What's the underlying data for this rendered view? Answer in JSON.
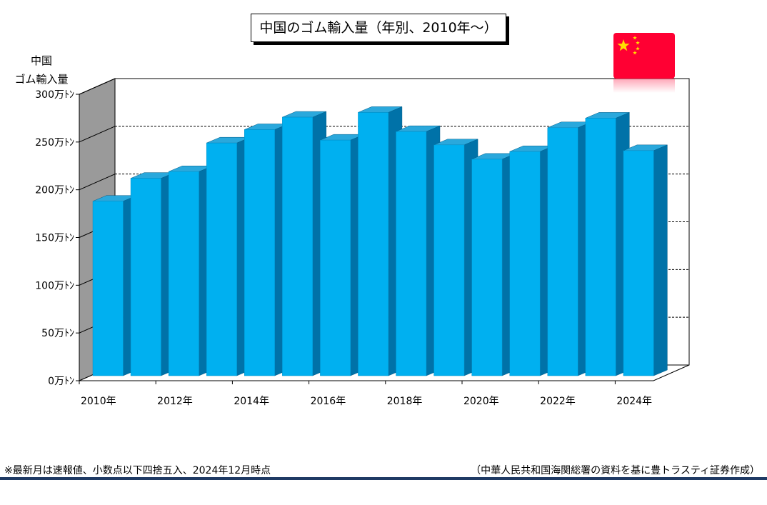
{
  "chart_data": {
    "type": "bar",
    "title": "中国のゴム輸入量（年別、2010年～）",
    "ylabel": [
      "中国",
      "ゴム輸入量"
    ],
    "categories": [
      "2010年",
      "2011年",
      "2012年",
      "2013年",
      "2014年",
      "2015年",
      "2016年",
      "2017年",
      "2018年",
      "2019年",
      "2020年",
      "2021年",
      "2022年",
      "2023年",
      "2024年"
    ],
    "x_tick_labels": [
      "2010年",
      "",
      "2012年",
      "",
      "2014年",
      "",
      "2016年",
      "",
      "2018年",
      "",
      "2020年",
      "",
      "2022年",
      "",
      "2024年"
    ],
    "values": [
      188,
      212,
      219,
      249,
      263,
      276,
      252,
      281,
      261,
      247,
      232,
      240,
      265,
      275,
      241
    ],
    "unit": "万トン",
    "ylim": [
      0,
      300
    ],
    "y_ticks": [
      0,
      50,
      100,
      150,
      200,
      250,
      300
    ],
    "y_tick_labels": [
      "0万ﾄﾝ",
      "50万ﾄﾝ",
      "100万ﾄﾝ",
      "150万ﾄﾝ",
      "200万ﾄﾝ",
      "250万ﾄﾝ",
      "300万ﾄﾝ"
    ],
    "grid": "dashed-horizontal",
    "style": "3d-bar",
    "colors": {
      "bar_front": "#00b0f0",
      "bar_side": "#0072a8",
      "bar_top": "#2aa8dc",
      "side_wall": "#9a9a9a"
    }
  },
  "flag": {
    "country": "China",
    "icon": "china-flag-icon",
    "color": "#ff0033",
    "star_color": "#ffde00"
  },
  "footnote": "※最新月は速報値、小数点以下四捨五入、2024年12月時点",
  "source": "（中華人民共和国海関総署の資料を基に豊トラスティ証券作成）",
  "colors": {
    "bottom_rule": "#1f3a64"
  }
}
